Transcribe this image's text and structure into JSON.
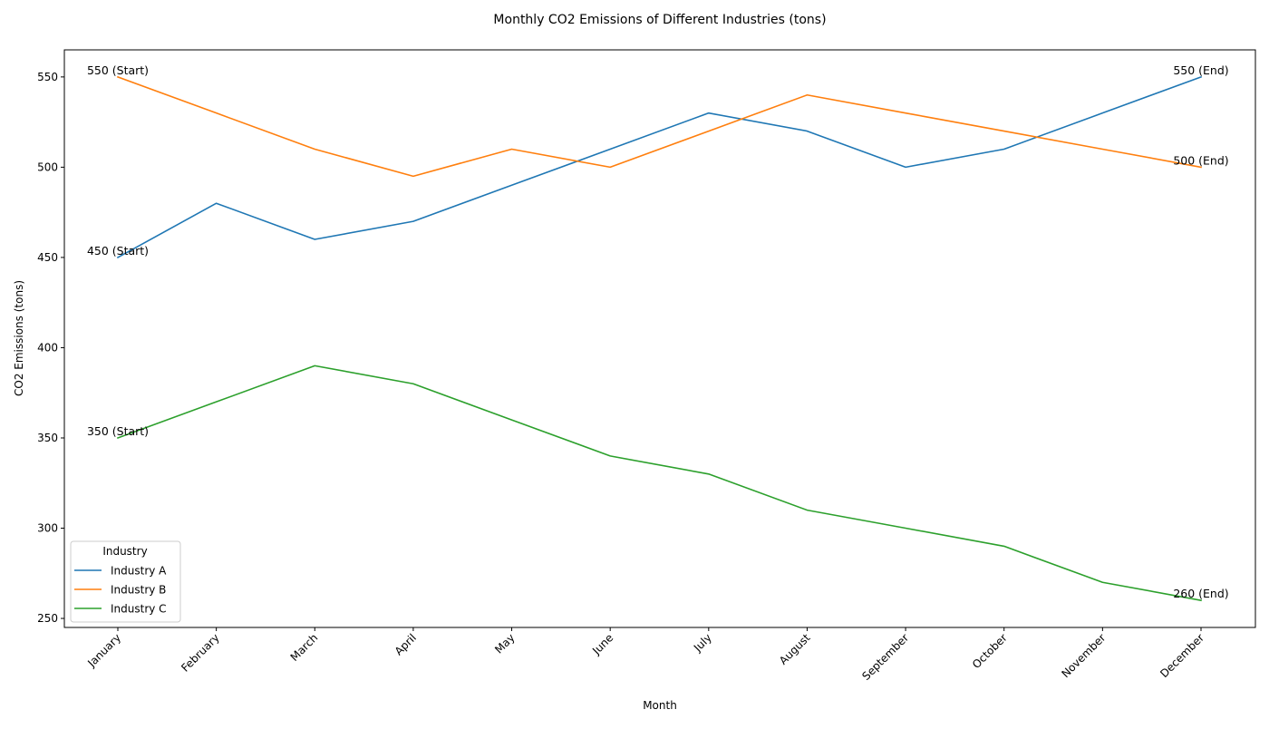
{
  "chart_data": {
    "type": "line",
    "title": "Monthly CO2 Emissions of Different Industries (tons)",
    "xlabel": "Month",
    "ylabel": "CO2 Emissions (tons)",
    "categories": [
      "January",
      "February",
      "March",
      "April",
      "May",
      "June",
      "July",
      "August",
      "September",
      "October",
      "November",
      "December"
    ],
    "ylim": [
      245,
      565
    ],
    "yticks": [
      250,
      300,
      350,
      400,
      450,
      500,
      550
    ],
    "grid": false,
    "legend": {
      "title": "Industry",
      "placement": "lower-left"
    },
    "series": [
      {
        "name": "Industry A",
        "color": "#1f77b4",
        "values": [
          450,
          480,
          460,
          470,
          490,
          510,
          530,
          520,
          500,
          510,
          530,
          550
        ],
        "start_label": "450 (Start)",
        "end_label": "550 (End)"
      },
      {
        "name": "Industry B",
        "color": "#ff7f0e",
        "values": [
          550,
          530,
          510,
          495,
          510,
          500,
          520,
          540,
          530,
          520,
          510,
          500
        ],
        "start_label": "550 (Start)",
        "end_label": "500 (End)"
      },
      {
        "name": "Industry C",
        "color": "#2ca02c",
        "values": [
          350,
          370,
          390,
          380,
          360,
          340,
          330,
          310,
          300,
          290,
          270,
          260
        ],
        "start_label": "350 (Start)",
        "end_label": "260 (End)"
      }
    ]
  }
}
